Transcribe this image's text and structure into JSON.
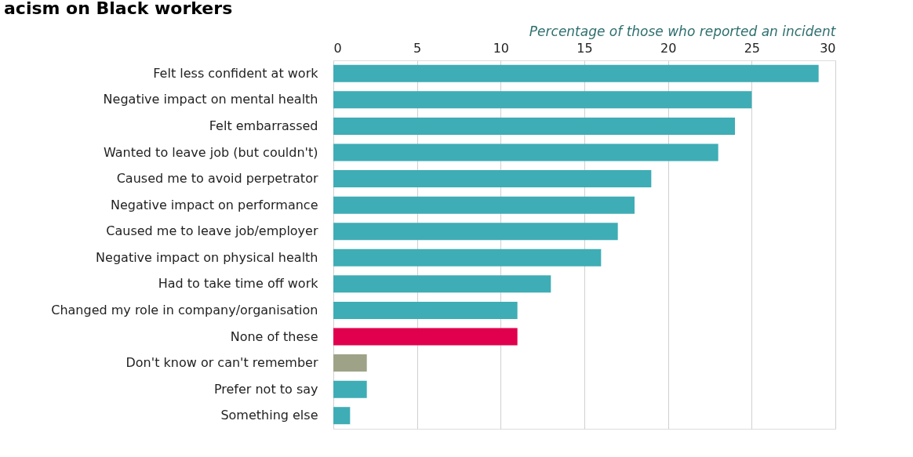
{
  "chart_data": {
    "type": "bar",
    "orientation": "horizontal",
    "title": "acism on Black workers",
    "xlabel": "Percentage of those who reported an incident",
    "categories": [
      "Felt less confident at work",
      "Negative impact on mental health",
      "Felt embarrassed",
      "Wanted to leave job (but couldn't)",
      "Caused me to avoid perpetrator",
      "Negative impact on performance",
      "Caused me to leave job/employer",
      "Negative impact on physical health",
      "Had to take time off work",
      "Changed my role in company/organisation",
      "None of these",
      "Don't know or can't remember",
      "Prefer not to say",
      "Something else"
    ],
    "values": [
      29,
      25,
      24,
      23,
      19,
      18,
      17,
      16,
      13,
      11,
      11,
      2,
      2,
      1
    ],
    "colors": [
      "#3fadb5",
      "#3fadb5",
      "#3fadb5",
      "#3fadb5",
      "#3fadb5",
      "#3fadb5",
      "#3fadb5",
      "#3fadb5",
      "#3fadb5",
      "#3fadb5",
      "#e0004d",
      "#9ea387",
      "#3fadb5",
      "#3fadb5"
    ],
    "xlim": [
      0,
      30
    ],
    "xticks": [
      0,
      5,
      10,
      15,
      20,
      25,
      30
    ],
    "grid": "x"
  }
}
